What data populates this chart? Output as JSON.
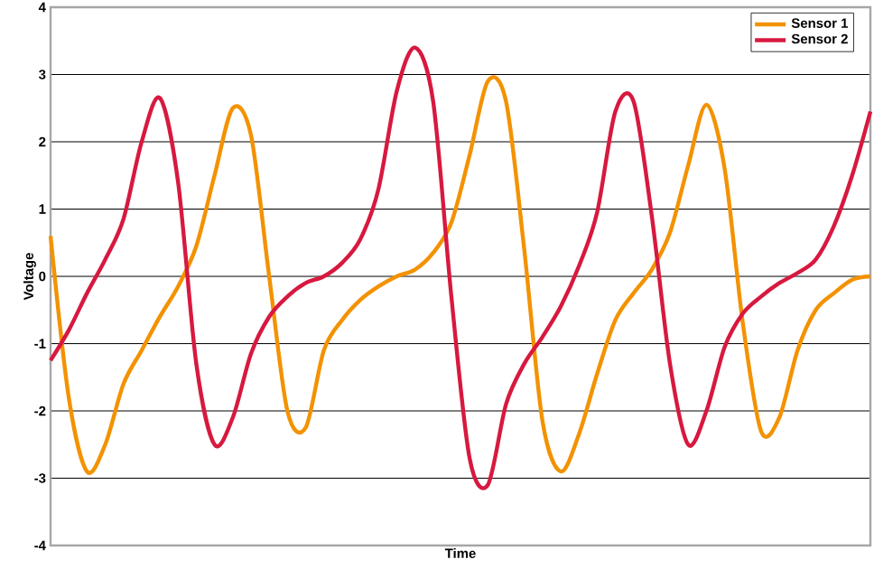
{
  "chart_data": {
    "type": "line",
    "xlabel": "Time",
    "ylabel": "Voltage",
    "categories": [
      null,
      null,
      null,
      null,
      null,
      null,
      null,
      null,
      null,
      null,
      null,
      null,
      null,
      null,
      null,
      null,
      null,
      null,
      null,
      null,
      null,
      null,
      null,
      null,
      null,
      null,
      null,
      null,
      null,
      null,
      null,
      null,
      null,
      null,
      null,
      null,
      null,
      null,
      null,
      null,
      null,
      null,
      null,
      null,
      null,
      null
    ],
    "series": [
      {
        "name": "Sensor 1",
        "color": "#f39200",
        "values": [
          0.6,
          -1.8,
          -2.9,
          -2.5,
          -1.6,
          -1.1,
          -0.6,
          -0.15,
          0.45,
          1.5,
          2.5,
          2.1,
          0.0,
          -2.0,
          -2.25,
          -1.1,
          -0.65,
          -0.35,
          -0.15,
          0.0,
          0.1,
          0.35,
          0.8,
          1.8,
          2.9,
          2.6,
          0.4,
          -2.15,
          -2.9,
          -2.35,
          -1.45,
          -0.65,
          -0.25,
          0.1,
          0.65,
          1.65,
          2.55,
          1.6,
          -0.7,
          -2.3,
          -2.1,
          -1.1,
          -0.5,
          -0.25,
          -0.05,
          0.0
        ]
      },
      {
        "name": "Sensor 2",
        "color": "#d7193f",
        "values": [
          -1.25,
          -0.8,
          -0.25,
          0.25,
          0.85,
          2.0,
          2.65,
          1.4,
          -1.3,
          -2.5,
          -2.1,
          -1.15,
          -0.6,
          -0.3,
          -0.1,
          0.0,
          0.2,
          0.55,
          1.3,
          2.75,
          3.4,
          2.6,
          -0.3,
          -2.7,
          -3.1,
          -1.9,
          -1.3,
          -0.9,
          -0.45,
          0.15,
          0.95,
          2.45,
          2.6,
          0.9,
          -1.3,
          -2.5,
          -2.0,
          -1.05,
          -0.55,
          -0.3,
          -0.1,
          0.05,
          0.25,
          0.75,
          1.5,
          2.45
        ]
      }
    ],
    "ylim": [
      -4,
      4
    ],
    "yticks": [
      -4,
      -3,
      -2,
      -1,
      0,
      1,
      2,
      3,
      4
    ],
    "grid": "y",
    "legend": "top right",
    "marker": "none",
    "line_style": "solid"
  }
}
